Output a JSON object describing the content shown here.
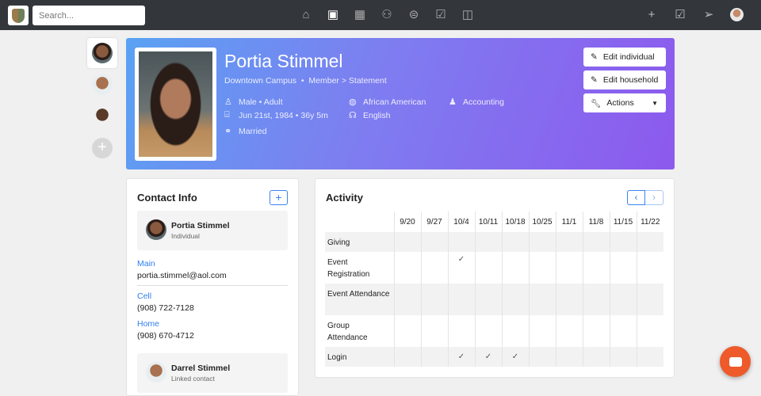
{
  "topbar": {
    "search_placeholder": "Search...",
    "nav_icons": [
      "home-icon",
      "contact-book-icon",
      "calendar-icon",
      "groups-icon",
      "giving-icon",
      "clipboard-check-icon",
      "devices-icon"
    ],
    "active_nav": "contact-book-icon",
    "right_icons": [
      "plus-icon",
      "checkbox-icon",
      "send-icon",
      "user-avatar"
    ]
  },
  "profile": {
    "name": "Portia Stimmel",
    "campus": "Downtown Campus",
    "sep": "•",
    "status": "Member > Statement",
    "gender_age": "Male • Adult",
    "birthday": "Jun 21st, 1984 • 36y 5m",
    "marital": "Married",
    "ethnicity": "African American",
    "language": "English",
    "occupation": "Accounting",
    "buttons": {
      "edit_individual": "Edit individual",
      "edit_household": "Edit household",
      "actions": "Actions"
    }
  },
  "contact": {
    "title": "Contact Info",
    "add": "+",
    "person": {
      "name": "Portia Stimmel",
      "role": "Individual"
    },
    "fields": [
      {
        "label": "Main",
        "value": "portia.stimmel@aol.com"
      },
      {
        "label": "Cell",
        "value": "(908) 722-7128"
      },
      {
        "label": "Home",
        "value": "(908) 670-4712"
      }
    ],
    "linked": {
      "name": "Darrel Stimmel",
      "role": "Linked contact"
    }
  },
  "activity": {
    "title": "Activity",
    "prev": "‹",
    "next": "›",
    "dates": [
      "9/20",
      "9/27",
      "10/4",
      "10/11",
      "10/18",
      "10/25",
      "11/1",
      "11/8",
      "11/15",
      "11/22"
    ],
    "rows": [
      {
        "label": "Giving",
        "checks": []
      },
      {
        "label": "Event Registration",
        "checks": [
          "10/4"
        ]
      },
      {
        "label": "Event Attendance",
        "checks": []
      },
      {
        "label": "Group Attendance",
        "checks": []
      },
      {
        "label": "Login",
        "checks": [
          "10/4",
          "10/11",
          "10/18"
        ]
      }
    ],
    "check_glyph": "✓"
  },
  "colors": {
    "topbar": "#33373c",
    "hero_start": "#5aa2f3",
    "hero_end": "#8d59ee",
    "link": "#2d7ff0",
    "chat": "#ee5a2a"
  }
}
